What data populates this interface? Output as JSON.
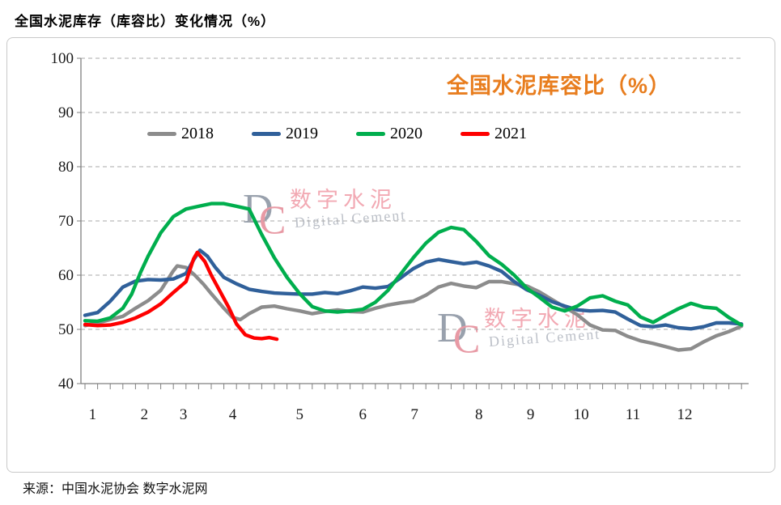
{
  "page": {
    "title": "全国水泥库存（库容比）变化情况（%）",
    "source": "来源：中国水泥协会 数字水泥网"
  },
  "watermark": {
    "logo_d": "D",
    "logo_c": "C",
    "cn": "数字水泥",
    "en": "Digital Cement"
  },
  "chart_data": {
    "type": "line",
    "title": "全国水泥库容比（%）",
    "title_color": "#E87D1E",
    "ylabel": "",
    "xlabel": "",
    "ylim": [
      40,
      100
    ],
    "y_ticks": [
      100,
      90,
      80,
      70,
      60,
      50,
      40
    ],
    "x_unit": "week-of-year",
    "weeks_total": 53,
    "grid": "dashed-horizontal",
    "legend_position": "top-center",
    "month_ticks": [
      {
        "label": "1",
        "w": 1.6
      },
      {
        "label": "2",
        "w": 5.7
      },
      {
        "label": "3",
        "w": 8.8
      },
      {
        "label": "4",
        "w": 12.7
      },
      {
        "label": "5",
        "w": 18.0
      },
      {
        "label": "6",
        "w": 23.0
      },
      {
        "label": "7",
        "w": 27.1
      },
      {
        "label": "8",
        "w": 32.2
      },
      {
        "label": "9",
        "w": 36.3
      },
      {
        "label": "10",
        "w": 40.3
      },
      {
        "label": "11",
        "w": 44.4
      },
      {
        "label": "12",
        "w": 48.5
      }
    ],
    "series": [
      {
        "name": "2018",
        "color": "#8c8c8c",
        "points": [
          [
            1,
            50.7
          ],
          [
            2,
            51.2
          ],
          [
            3,
            51.8
          ],
          [
            4,
            52.4
          ],
          [
            5,
            53.9
          ],
          [
            6,
            55.3
          ],
          [
            7,
            57.2
          ],
          [
            8,
            60.8
          ],
          [
            8.3,
            61.7
          ],
          [
            9,
            61.4
          ],
          [
            9.7,
            60.0
          ],
          [
            10.4,
            58.3
          ],
          [
            11,
            56.6
          ],
          [
            12,
            53.9
          ],
          [
            12.7,
            52.2
          ],
          [
            13.3,
            51.8
          ],
          [
            14,
            52.9
          ],
          [
            15,
            54.1
          ],
          [
            16,
            54.3
          ],
          [
            17,
            53.8
          ],
          [
            18,
            53.4
          ],
          [
            19,
            52.9
          ],
          [
            20,
            53.3
          ],
          [
            21,
            53.6
          ],
          [
            22,
            53.3
          ],
          [
            23,
            53.2
          ],
          [
            24,
            53.9
          ],
          [
            25,
            54.5
          ],
          [
            26,
            54.9
          ],
          [
            27,
            55.2
          ],
          [
            28,
            56.3
          ],
          [
            29,
            57.8
          ],
          [
            30,
            58.5
          ],
          [
            31,
            58.0
          ],
          [
            32,
            57.7
          ],
          [
            33,
            58.8
          ],
          [
            34,
            58.8
          ],
          [
            35,
            58.4
          ],
          [
            36,
            58.0
          ],
          [
            37,
            56.9
          ],
          [
            38,
            55.5
          ],
          [
            39,
            54.1
          ],
          [
            40,
            52.7
          ],
          [
            41,
            50.8
          ],
          [
            42,
            49.9
          ],
          [
            43,
            49.8
          ],
          [
            44,
            48.7
          ],
          [
            45,
            47.9
          ],
          [
            46,
            47.4
          ],
          [
            47,
            46.8
          ],
          [
            48,
            46.2
          ],
          [
            49,
            46.4
          ],
          [
            50,
            47.7
          ],
          [
            51,
            48.8
          ],
          [
            52,
            49.6
          ],
          [
            53,
            50.6
          ]
        ]
      },
      {
        "name": "2019",
        "color": "#30609a",
        "points": [
          [
            1,
            52.6
          ],
          [
            2,
            53.1
          ],
          [
            3,
            55.2
          ],
          [
            4,
            57.8
          ],
          [
            5,
            58.9
          ],
          [
            6,
            59.2
          ],
          [
            7,
            59.1
          ],
          [
            8,
            59.3
          ],
          [
            9,
            60.3
          ],
          [
            9.6,
            62.8
          ],
          [
            10.1,
            64.6
          ],
          [
            10.7,
            63.5
          ],
          [
            11.3,
            61.5
          ],
          [
            12,
            59.6
          ],
          [
            13,
            58.4
          ],
          [
            14,
            57.4
          ],
          [
            15,
            57.0
          ],
          [
            16,
            56.7
          ],
          [
            17,
            56.6
          ],
          [
            18,
            56.5
          ],
          [
            19,
            56.5
          ],
          [
            20,
            56.8
          ],
          [
            21,
            56.6
          ],
          [
            22,
            57.1
          ],
          [
            23,
            57.8
          ],
          [
            24,
            57.6
          ],
          [
            25,
            57.9
          ],
          [
            26,
            59.5
          ],
          [
            27,
            61.2
          ],
          [
            28,
            62.4
          ],
          [
            29,
            62.9
          ],
          [
            30,
            62.5
          ],
          [
            31,
            62.1
          ],
          [
            32,
            62.4
          ],
          [
            33,
            61.7
          ],
          [
            34,
            60.7
          ],
          [
            35,
            58.8
          ],
          [
            36,
            57.3
          ],
          [
            37,
            56.3
          ],
          [
            38,
            55.1
          ],
          [
            39,
            54.3
          ],
          [
            40,
            53.6
          ],
          [
            41,
            53.4
          ],
          [
            42,
            53.5
          ],
          [
            43,
            53.2
          ],
          [
            44,
            51.9
          ],
          [
            45,
            50.7
          ],
          [
            46,
            50.5
          ],
          [
            47,
            50.8
          ],
          [
            48,
            50.3
          ],
          [
            49,
            50.1
          ],
          [
            50,
            50.5
          ],
          [
            51,
            51.2
          ],
          [
            52,
            51.2
          ],
          [
            53,
            51.0
          ]
        ]
      },
      {
        "name": "2020",
        "color": "#00ae4d",
        "points": [
          [
            1,
            51.6
          ],
          [
            2,
            51.5
          ],
          [
            3,
            52.1
          ],
          [
            4,
            53.9
          ],
          [
            4.7,
            56.5
          ],
          [
            5.4,
            60.5
          ],
          [
            6,
            63.5
          ],
          [
            7,
            67.8
          ],
          [
            8,
            70.8
          ],
          [
            9,
            72.2
          ],
          [
            10,
            72.7
          ],
          [
            11,
            73.2
          ],
          [
            12,
            73.2
          ],
          [
            13,
            72.7
          ],
          [
            14,
            72.2
          ],
          [
            15,
            67.5
          ],
          [
            16,
            63.2
          ],
          [
            17,
            59.6
          ],
          [
            18,
            56.6
          ],
          [
            19,
            54.2
          ],
          [
            20,
            53.4
          ],
          [
            21,
            53.2
          ],
          [
            22,
            53.4
          ],
          [
            23,
            53.7
          ],
          [
            24,
            55.0
          ],
          [
            25,
            57.2
          ],
          [
            26,
            60.2
          ],
          [
            27,
            63.2
          ],
          [
            28,
            65.9
          ],
          [
            29,
            67.9
          ],
          [
            30,
            68.8
          ],
          [
            31,
            68.4
          ],
          [
            32,
            66.2
          ],
          [
            33,
            63.6
          ],
          [
            34,
            62.0
          ],
          [
            35,
            60.0
          ],
          [
            36,
            57.6
          ],
          [
            37,
            55.9
          ],
          [
            38,
            54.1
          ],
          [
            39,
            53.4
          ],
          [
            40,
            54.3
          ],
          [
            41,
            55.8
          ],
          [
            42,
            56.2
          ],
          [
            43,
            55.2
          ],
          [
            44,
            54.5
          ],
          [
            45,
            52.3
          ],
          [
            46,
            51.3
          ],
          [
            47,
            52.6
          ],
          [
            48,
            53.8
          ],
          [
            49,
            54.8
          ],
          [
            50,
            54.1
          ],
          [
            51,
            53.9
          ],
          [
            52,
            52.2
          ],
          [
            53,
            50.8
          ]
        ]
      },
      {
        "name": "2021",
        "color": "#fe0000",
        "points": [
          [
            1,
            50.9
          ],
          [
            2,
            50.7
          ],
          [
            3,
            50.8
          ],
          [
            4,
            51.3
          ],
          [
            5,
            52.1
          ],
          [
            6,
            53.2
          ],
          [
            7,
            54.7
          ],
          [
            8,
            56.8
          ],
          [
            9,
            58.8
          ],
          [
            9.6,
            63.0
          ],
          [
            9.9,
            64.2
          ],
          [
            10.5,
            62.5
          ],
          [
            11,
            60.0
          ],
          [
            11.7,
            57.0
          ],
          [
            12.4,
            54.0
          ],
          [
            13,
            51.0
          ],
          [
            13.7,
            49.0
          ],
          [
            14.4,
            48.4
          ],
          [
            15,
            48.3
          ],
          [
            15.6,
            48.5
          ],
          [
            16.2,
            48.2
          ]
        ]
      }
    ]
  }
}
